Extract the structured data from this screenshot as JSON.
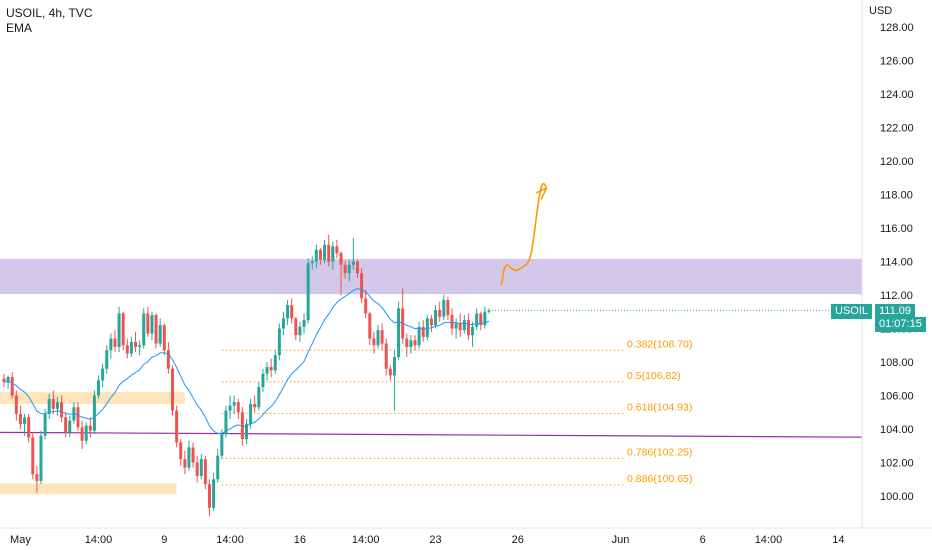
{
  "header": {
    "symbol_line": "USOIL, 4h, TVC",
    "indicator": "EMA",
    "currency": "USD"
  },
  "price_badge": {
    "symbol": "USOIL",
    "price": "111.09",
    "countdown": "01:07:15"
  },
  "colors": {
    "up": "#26a69a",
    "down": "#ef5350",
    "ema": "#2196f3",
    "fib": "#ff9800",
    "zone_resist": "#d1c4e9",
    "zone_support": "#ffe0b2",
    "trendline": "#9c27b0",
    "arrow": "#ff9800"
  },
  "chart_data": {
    "type": "candlestick",
    "y_range": [
      98.5,
      129.3
    ],
    "x_range": [
      0,
      136
    ],
    "y_ticks": [
      "100.00",
      "102.00",
      "104.00",
      "106.00",
      "108.00",
      "110.00",
      "112.00",
      "114.00",
      "116.00",
      "118.00",
      "120.00",
      "122.00",
      "124.00",
      "126.00",
      "128.00"
    ],
    "x_ticks": [
      {
        "label": "May",
        "i": 4
      },
      {
        "label": "14:00",
        "i": 23
      },
      {
        "label": "9",
        "i": 39
      },
      {
        "label": "14:00",
        "i": 55
      },
      {
        "label": "16",
        "i": 72
      },
      {
        "label": "14:00",
        "i": 88
      },
      {
        "label": "23",
        "i": 105
      },
      {
        "label": "26",
        "i": 125
      },
      {
        "label": "Jun",
        "i": 150
      },
      {
        "label": "6",
        "i": 170
      },
      {
        "label": "14:00",
        "i": 186
      },
      {
        "label": "14",
        "i": 203
      }
    ],
    "fib_levels": [
      {
        "label": "0.382(108.70)",
        "price": 108.7
      },
      {
        "label": "0.5(106.82)",
        "price": 106.82
      },
      {
        "label": "0.618(104.93)",
        "price": 104.93
      },
      {
        "label": "0.786(102.25)",
        "price": 102.25
      },
      {
        "label": "0.886(100.65)",
        "price": 100.65
      }
    ],
    "zones": [
      {
        "kind": "resistance",
        "from_i": 0,
        "to_i": 136,
        "low": 112.05,
        "high": 114.15
      },
      {
        "kind": "support",
        "from_i": 0,
        "to_i": 44,
        "low": 105.5,
        "high": 106.2
      },
      {
        "kind": "support",
        "from_i": 0,
        "to_i": 42,
        "low": 100.1,
        "high": 100.75
      }
    ],
    "trendline": {
      "from": [
        0,
        103.8
      ],
      "to": [
        218,
        103.5
      ]
    },
    "projection": [
      [
        121,
        112.6
      ],
      [
        122,
        114.0
      ],
      [
        124,
        113.4
      ],
      [
        126,
        113.6
      ],
      [
        128,
        114.0
      ],
      [
        129,
        115.6
      ],
      [
        130,
        117.6
      ],
      [
        131,
        118.8
      ],
      [
        132,
        118.4
      ]
    ],
    "candles": [
      [
        107.0,
        107.3,
        106.5,
        106.8
      ],
      [
        106.8,
        107.2,
        106.4,
        107.1
      ],
      [
        107.1,
        107.4,
        105.8,
        106.0
      ],
      [
        106.0,
        106.3,
        104.5,
        104.9
      ],
      [
        104.9,
        105.4,
        104.0,
        104.3
      ],
      [
        104.3,
        104.9,
        103.6,
        104.7
      ],
      [
        104.7,
        104.9,
        103.2,
        103.5
      ],
      [
        103.5,
        103.8,
        101.0,
        101.3
      ],
      [
        101.3,
        101.8,
        100.2,
        100.9
      ],
      [
        100.9,
        103.9,
        100.7,
        103.6
      ],
      [
        103.6,
        105.2,
        103.4,
        104.9
      ],
      [
        104.9,
        106.1,
        104.6,
        105.8
      ],
      [
        105.8,
        106.3,
        104.9,
        105.2
      ],
      [
        105.2,
        105.9,
        104.8,
        105.6
      ],
      [
        105.6,
        106.0,
        104.4,
        104.7
      ],
      [
        104.7,
        105.0,
        103.5,
        103.8
      ],
      [
        103.8,
        104.8,
        103.5,
        104.5
      ],
      [
        104.5,
        105.6,
        104.3,
        105.3
      ],
      [
        105.3,
        105.6,
        103.9,
        104.1
      ],
      [
        104.1,
        104.5,
        102.8,
        103.3
      ],
      [
        103.3,
        104.4,
        103.1,
        104.2
      ],
      [
        104.2,
        104.7,
        103.5,
        103.9
      ],
      [
        103.9,
        106.3,
        103.7,
        106.0
      ],
      [
        106.0,
        107.2,
        105.8,
        106.9
      ],
      [
        106.9,
        107.9,
        106.5,
        107.6
      ],
      [
        107.6,
        109.0,
        107.3,
        108.7
      ],
      [
        108.7,
        109.7,
        108.2,
        109.4
      ],
      [
        109.4,
        109.9,
        108.6,
        108.9
      ],
      [
        108.9,
        111.3,
        108.6,
        110.9
      ],
      [
        110.9,
        111.0,
        108.7,
        109.0
      ],
      [
        109.0,
        109.4,
        108.2,
        108.5
      ],
      [
        108.5,
        109.5,
        108.3,
        109.2
      ],
      [
        109.2,
        109.8,
        108.6,
        108.9
      ],
      [
        108.9,
        109.3,
        108.4,
        109.0
      ],
      [
        109.0,
        111.2,
        108.8,
        110.9
      ],
      [
        110.9,
        111.3,
        109.5,
        109.7
      ],
      [
        109.7,
        111.0,
        109.3,
        110.8
      ],
      [
        110.8,
        110.9,
        108.8,
        109.1
      ],
      [
        109.1,
        110.6,
        108.9,
        110.2
      ],
      [
        110.2,
        110.3,
        108.4,
        108.7
      ],
      [
        108.7,
        109.2,
        107.3,
        107.6
      ],
      [
        107.6,
        107.8,
        104.8,
        105.1
      ],
      [
        105.1,
        105.4,
        102.9,
        103.2
      ],
      [
        103.2,
        103.4,
        101.8,
        102.2
      ],
      [
        102.2,
        102.7,
        101.3,
        101.7
      ],
      [
        101.7,
        103.3,
        101.5,
        102.9
      ],
      [
        102.9,
        103.2,
        101.7,
        102.0
      ],
      [
        102.0,
        102.4,
        100.8,
        101.2
      ],
      [
        101.2,
        102.5,
        101.0,
        102.2
      ],
      [
        102.2,
        102.4,
        100.4,
        100.7
      ],
      [
        100.7,
        101.0,
        98.8,
        99.3
      ],
      [
        99.3,
        101.4,
        99.1,
        101.0
      ],
      [
        101.0,
        102.8,
        100.8,
        102.4
      ],
      [
        102.4,
        104.0,
        102.2,
        103.7
      ],
      [
        103.7,
        105.4,
        103.5,
        105.1
      ],
      [
        105.1,
        106.0,
        104.6,
        105.4
      ],
      [
        105.4,
        106.0,
        104.9,
        105.6
      ],
      [
        105.6,
        105.8,
        104.6,
        105.0
      ],
      [
        105.0,
        105.3,
        103.0,
        103.4
      ],
      [
        103.4,
        104.6,
        103.1,
        104.3
      ],
      [
        104.3,
        105.8,
        104.0,
        105.5
      ],
      [
        105.5,
        106.0,
        105.0,
        105.3
      ],
      [
        105.3,
        106.8,
        105.1,
        106.5
      ],
      [
        106.5,
        107.6,
        106.2,
        107.3
      ],
      [
        107.3,
        108.0,
        106.9,
        107.7
      ],
      [
        107.7,
        108.2,
        107.1,
        107.5
      ],
      [
        107.5,
        108.7,
        107.3,
        108.4
      ],
      [
        108.4,
        110.3,
        108.1,
        110.0
      ],
      [
        110.0,
        111.0,
        109.6,
        110.6
      ],
      [
        110.6,
        111.7,
        110.2,
        111.4
      ],
      [
        111.4,
        111.8,
        110.3,
        110.6
      ],
      [
        110.6,
        110.7,
        109.3,
        109.6
      ],
      [
        109.6,
        110.4,
        109.2,
        110.1
      ],
      [
        110.1,
        110.9,
        109.7,
        110.5
      ],
      [
        110.5,
        114.2,
        110.3,
        113.9
      ],
      [
        113.9,
        114.3,
        113.5,
        114.0
      ],
      [
        114.0,
        115.0,
        113.6,
        114.7
      ],
      [
        114.7,
        114.8,
        113.8,
        114.1
      ],
      [
        114.1,
        115.3,
        113.9,
        115.0
      ],
      [
        115.0,
        115.6,
        113.7,
        114.0
      ],
      [
        114.0,
        115.2,
        113.5,
        114.9
      ],
      [
        114.9,
        115.3,
        114.2,
        114.5
      ],
      [
        114.5,
        114.6,
        112.0,
        113.8
      ],
      [
        113.8,
        114.0,
        113.0,
        113.3
      ],
      [
        113.3,
        114.1,
        112.8,
        113.8
      ],
      [
        113.8,
        115.4,
        113.5,
        114.0
      ],
      [
        114.0,
        114.1,
        113.0,
        113.3
      ],
      [
        113.3,
        113.6,
        111.5,
        111.8
      ],
      [
        111.8,
        112.3,
        110.6,
        110.9
      ],
      [
        110.9,
        111.0,
        109.0,
        109.4
      ],
      [
        109.4,
        109.8,
        108.5,
        109.0
      ],
      [
        109.0,
        110.2,
        108.8,
        109.9
      ],
      [
        109.9,
        110.3,
        108.7,
        109.1
      ],
      [
        109.1,
        109.4,
        107.2,
        107.6
      ],
      [
        107.6,
        107.8,
        106.9,
        107.2
      ],
      [
        107.2,
        108.7,
        105.1,
        108.3
      ],
      [
        108.3,
        111.6,
        108.1,
        111.2
      ],
      [
        111.2,
        112.4,
        109.1,
        109.4
      ],
      [
        109.4,
        109.7,
        108.3,
        108.9
      ],
      [
        108.9,
        109.6,
        108.5,
        109.3
      ],
      [
        109.3,
        109.6,
        108.7,
        109.0
      ],
      [
        109.0,
        110.4,
        108.8,
        110.1
      ],
      [
        110.1,
        110.5,
        109.2,
        109.5
      ],
      [
        109.5,
        110.8,
        109.3,
        110.6
      ],
      [
        110.6,
        110.8,
        109.8,
        110.2
      ],
      [
        110.2,
        111.4,
        110.0,
        111.1
      ],
      [
        111.1,
        111.6,
        110.4,
        110.7
      ],
      [
        110.7,
        112.0,
        110.5,
        111.7
      ],
      [
        111.7,
        111.9,
        110.5,
        110.8
      ],
      [
        110.8,
        111.2,
        109.6,
        110.0
      ],
      [
        110.0,
        110.6,
        109.4,
        110.3
      ],
      [
        110.3,
        110.9,
        109.5,
        109.9
      ],
      [
        109.9,
        110.8,
        109.7,
        110.5
      ],
      [
        110.5,
        110.9,
        109.3,
        109.6
      ],
      [
        109.6,
        110.4,
        108.9,
        110.1
      ],
      [
        110.1,
        111.2,
        109.9,
        110.9
      ],
      [
        110.9,
        111.0,
        109.9,
        110.2
      ],
      [
        110.2,
        111.3,
        110.0,
        111.0
      ],
      [
        111.0,
        111.2,
        110.9,
        111.09
      ]
    ]
  }
}
